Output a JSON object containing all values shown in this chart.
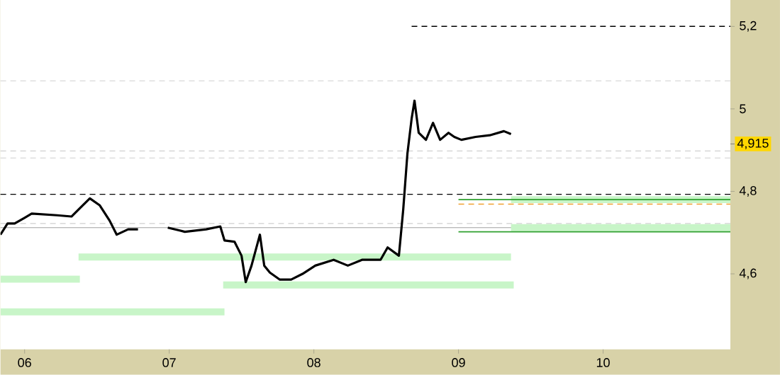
{
  "chart_data": {
    "type": "line",
    "xlim": [
      5.833,
      10.88
    ],
    "ylim": [
      4.417,
      5.264
    ],
    "xticks": [
      {
        "value": 6,
        "label": "06"
      },
      {
        "value": 7,
        "label": "07"
      },
      {
        "value": 8,
        "label": "08"
      },
      {
        "value": 9,
        "label": "09"
      },
      {
        "value": 10,
        "label": "10"
      }
    ],
    "yticks": [
      {
        "value": 4.6,
        "label": "4,6"
      },
      {
        "value": 4.8,
        "label": "4,8"
      },
      {
        "value": 5,
        "label": "5"
      },
      {
        "value": 5.2,
        "label": "5,2"
      }
    ],
    "marker": "none",
    "annotations": [
      {
        "text": "4,915",
        "x": 10.88,
        "y": 4.915
      }
    ],
    "ref_lines": [
      {
        "axis": "y",
        "value": 4.793,
        "color": "#000000",
        "line_style": "dashed"
      },
      {
        "axis": "y",
        "value": 5.068,
        "color": "#d0d0d0",
        "line_style": "dashed"
      },
      {
        "axis": "y",
        "value": 4.898,
        "color": "#d0d0d0",
        "line_style": "dashed"
      },
      {
        "axis": "y",
        "value": 4.881,
        "color": "#d0d0d0",
        "line_style": "dashed"
      },
      {
        "axis": "y",
        "value": 4.722,
        "color": "#d0d0d0",
        "line_style": "dashed"
      },
      {
        "axis": "y",
        "value": 4.712,
        "color": "#a0a0a0",
        "line_style": "solid"
      }
    ],
    "series": [
      {
        "color": "#c8f5c8",
        "line_style": "solid",
        "x": [
          5.833,
          6.382
        ],
        "values": [
          4.587,
          4.587
        ]
      },
      {
        "color": "#c8f5c8",
        "line_style": "solid",
        "x": [
          5.833,
          7.382
        ],
        "values": [
          4.508,
          4.508
        ]
      },
      {
        "color": "#c8f5c8",
        "line_style": "solid",
        "x": [
          6.373,
          9.363
        ],
        "values": [
          4.641,
          4.641
        ]
      },
      {
        "color": "#c8f5c8",
        "line_style": "solid",
        "x": [
          7.373,
          9.382
        ],
        "values": [
          4.573,
          4.573
        ]
      },
      {
        "color": "#c8f5c8",
        "line_style": "solid",
        "x": [
          9.363,
          10.88
        ],
        "values": [
          4.78,
          4.78
        ]
      },
      {
        "color": "#c8f5c8",
        "line_style": "solid",
        "x": [
          9.363,
          10.88
        ],
        "values": [
          4.712,
          4.712
        ]
      },
      {
        "color": "#2ea02e",
        "line_style": "solid",
        "x": [
          9.0,
          10.88
        ],
        "values": [
          4.78,
          4.78
        ]
      },
      {
        "color": "#2ea02e",
        "line_style": "solid",
        "x": [
          9.0,
          10.88
        ],
        "values": [
          4.702,
          4.702
        ]
      },
      {
        "color": "#f0a030",
        "line_style": "dashed",
        "x": [
          9.0,
          10.88
        ],
        "values": [
          4.769,
          4.769
        ]
      },
      {
        "color": "#000000",
        "line_style": "dashed",
        "x": [
          8.676,
          10.88
        ],
        "values": [
          5.2,
          5.2
        ]
      },
      {
        "color": "#000000",
        "line_style": "solid",
        "x": [
          5.833,
          5.882,
          5.931,
          6.0,
          6.049,
          6.225,
          6.324,
          6.373,
          6.451,
          6.52,
          6.588,
          6.637,
          6.716,
          6.784,
          6.9,
          6.99,
          7.108,
          7.255,
          7.353,
          7.382,
          7.451,
          7.5,
          7.529,
          7.569,
          7.627,
          7.657,
          7.696,
          7.765,
          7.843,
          7.922,
          8.01,
          8.137,
          8.235,
          8.333,
          8.461,
          8.51,
          8.588,
          8.618,
          8.647,
          8.676,
          8.696,
          8.725,
          8.775,
          8.824,
          8.873,
          8.931,
          8.971,
          9.02,
          9.118,
          9.216,
          9.314,
          9.363
        ],
        "values": [
          4.695,
          4.722,
          4.722,
          4.736,
          4.746,
          4.742,
          4.739,
          4.756,
          4.783,
          4.766,
          4.729,
          4.695,
          4.708,
          4.708,
          null,
          4.712,
          4.702,
          4.708,
          4.715,
          4.681,
          4.678,
          4.644,
          4.58,
          4.62,
          4.695,
          4.62,
          4.603,
          4.586,
          4.586,
          4.6,
          4.62,
          4.634,
          4.62,
          4.634,
          4.634,
          4.664,
          4.644,
          4.756,
          4.892,
          4.976,
          5.02,
          4.942,
          4.925,
          4.966,
          4.925,
          4.942,
          4.932,
          4.925,
          4.932,
          4.936,
          4.946,
          4.939
        ]
      }
    ]
  }
}
